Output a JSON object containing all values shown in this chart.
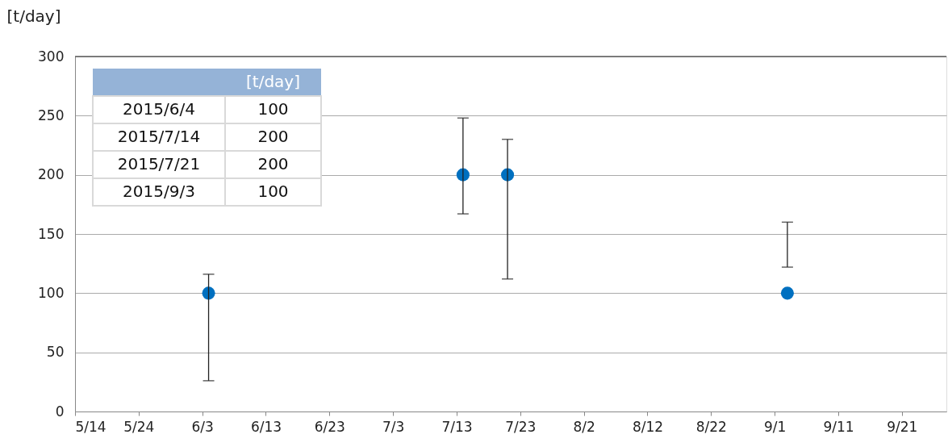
{
  "chart_data": {
    "type": "scatter",
    "ylabel": "[t/day]",
    "annotations": [
      "[t/day]",
      "2015/6/4",
      "100",
      "2015/7/14",
      "200",
      "2015/7/21",
      "200",
      "2015/9/3",
      "100"
    ],
    "x": [
      "2015-06-04",
      "2015-07-14",
      "2015-07-21",
      "2015-09-03"
    ],
    "series": [
      {
        "color": "#0070c0",
        "values": [
          100,
          200,
          200,
          100
        ],
        "errors": [
          [
            26,
            116
          ],
          [
            167,
            248
          ],
          [
            112,
            230
          ],
          [
            122,
            160
          ]
        ]
      }
    ],
    "marker": "circle",
    "xlim": [
      "2015-05-14",
      "2015-09-28"
    ],
    "xticks": [
      {
        "value": "2015-05-14",
        "label": "5/14"
      },
      {
        "value": "2015-05-24",
        "label": "5/24"
      },
      {
        "value": "2015-06-03",
        "label": "6/3"
      },
      {
        "value": "2015-06-13",
        "label": "6/13"
      },
      {
        "value": "2015-06-23",
        "label": "6/23"
      },
      {
        "value": "2015-07-03",
        "label": "7/3"
      },
      {
        "value": "2015-07-13",
        "label": "7/13"
      },
      {
        "value": "2015-07-23",
        "label": "7/23"
      },
      {
        "value": "2015-08-02",
        "label": "8/2"
      },
      {
        "value": "2015-08-12",
        "label": "8/12"
      },
      {
        "value": "2015-08-22",
        "label": "8/22"
      },
      {
        "value": "2015-09-01",
        "label": "9/1"
      },
      {
        "value": "2015-09-11",
        "label": "9/11"
      },
      {
        "value": "2015-09-21",
        "label": "9/21"
      }
    ],
    "ylim": [
      0,
      300
    ],
    "yticks": [
      0,
      50,
      100,
      150,
      200,
      250,
      300
    ],
    "grid": "y",
    "legend": false
  }
}
